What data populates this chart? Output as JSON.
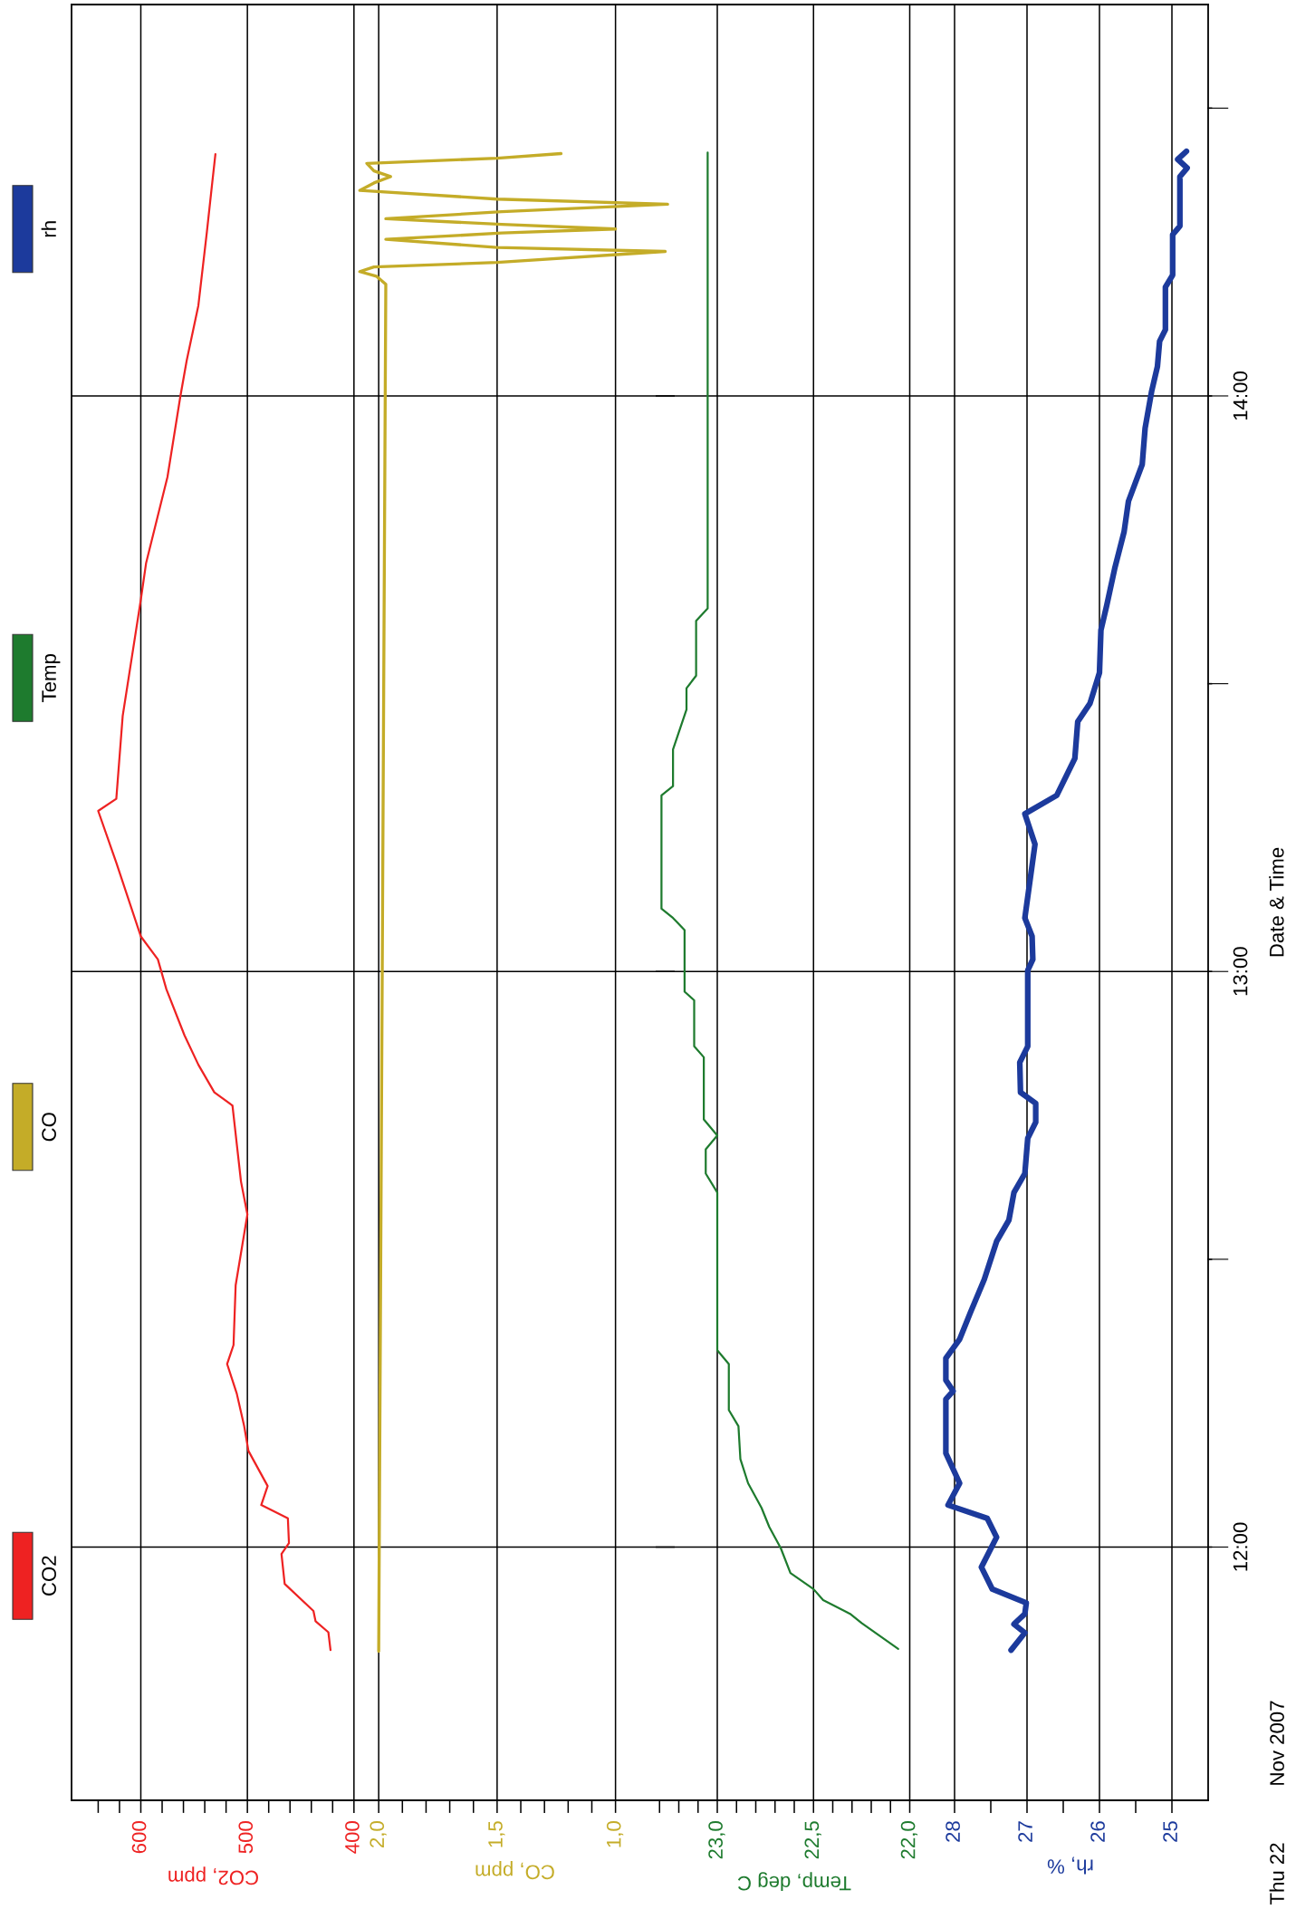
{
  "chart_data": [
    {
      "type": "line",
      "orientation": "horizontal",
      "xlabel": "CO2, ppm",
      "xlim": [
        665,
        399
      ],
      "xticks": [
        {
          "value": 640,
          "label": null
        },
        {
          "value": 620,
          "label": null
        },
        600,
        {
          "value": 580,
          "label": null
        },
        {
          "value": 560,
          "label": null
        },
        {
          "value": 540,
          "label": null
        },
        {
          "value": 520,
          "label": null
        },
        500,
        {
          "value": 480,
          "label": null
        },
        {
          "value": 460,
          "label": null
        },
        {
          "value": 440,
          "label": null
        },
        {
          "value": 420,
          "label": null
        },
        400
      ],
      "ylim": [
        11.56,
        14.68
      ],
      "yticks": [
        12,
        13,
        14
      ],
      "tick_labels": "x",
      "grid": true,
      "legend": "left",
      "x": [
        11.821,
        11.852,
        11.871,
        11.889,
        11.936,
        11.988,
        12.007,
        12.05,
        12.073,
        12.106,
        12.167,
        12.21,
        12.267,
        12.318,
        12.351,
        12.455,
        12.578,
        12.635,
        12.767,
        12.79,
        12.838,
        12.889,
        12.969,
        13.021,
        13.061,
        13.189,
        13.279,
        13.3,
        13.444,
        13.646,
        13.71,
        13.859,
        13.998,
        14.061,
        14.157,
        14.285,
        14.37,
        14.42
      ],
      "series": [
        {
          "name": "CO2",
          "color": "#ee2222",
          "values": [
            422,
            424,
            436,
            438,
            465,
            468,
            461,
            462,
            487,
            481,
            499,
            503,
            510,
            519,
            513,
            511,
            500,
            506,
            514,
            531,
            546,
            559,
            576,
            584,
            600,
            623,
            640,
            623,
            617,
            600,
            595,
            575,
            563,
            557,
            546,
            538,
            533,
            530
          ]
        }
      ]
    },
    {
      "type": "line",
      "orientation": "horizontal",
      "xlabel": "CO, ppm",
      "xlim": [
        2.1,
        0.75
      ],
      "xticks": [
        {
          "value": 2.0,
          "label": "2,0"
        },
        {
          "value": 1.9,
          "label": null
        },
        {
          "value": 1.8,
          "label": null
        },
        {
          "value": 1.7,
          "label": null
        },
        {
          "value": 1.6,
          "label": null
        },
        {
          "value": 1.5,
          "label": "1,5"
        },
        {
          "value": 1.4,
          "label": null
        },
        {
          "value": 1.3,
          "label": null
        },
        {
          "value": 1.2,
          "label": null
        },
        {
          "value": 1.1,
          "label": null
        },
        {
          "value": 1.0,
          "label": "1,0"
        }
      ],
      "ylim": [
        11.56,
        14.68
      ],
      "yticks": [
        12,
        13,
        14
      ],
      "tick_labels": "x",
      "grid": true,
      "legend": "left",
      "x": [
        11.819,
        14.194,
        14.208,
        14.216,
        14.224,
        14.232,
        14.251,
        14.258,
        14.272,
        14.283,
        14.29,
        14.298,
        14.308,
        14.32,
        14.333,
        14.342,
        14.357,
        14.37,
        14.381,
        14.391,
        14.404,
        14.413,
        14.421
      ],
      "series": [
        {
          "name": "CO",
          "color": "#c4ac28",
          "values": [
            2.0,
            1.97,
            2.01,
            2.08,
            2.02,
            1.5,
            0.79,
            1.5,
            1.97,
            1.48,
            1.0,
            1.48,
            1.97,
            1.48,
            0.78,
            1.5,
            2.08,
            2.02,
            1.95,
            2.02,
            2.05,
            1.5,
            1.23
          ]
        }
      ]
    },
    {
      "type": "line",
      "orientation": "horizontal",
      "xlabel": "Temp, deg C",
      "xlim": [
        23.32,
        21.88
      ],
      "xticks": [
        {
          "value": 23.3,
          "label": null
        },
        {
          "value": 23.2,
          "label": null
        },
        {
          "value": 23.1,
          "label": null
        },
        {
          "value": 23.0,
          "label": "23,0"
        },
        {
          "value": 22.9,
          "label": null
        },
        {
          "value": 22.8,
          "label": null
        },
        {
          "value": 22.7,
          "label": null
        },
        {
          "value": 22.6,
          "label": null
        },
        {
          "value": 22.5,
          "label": "22,5"
        },
        {
          "value": 22.4,
          "label": null
        },
        {
          "value": 22.3,
          "label": null
        },
        {
          "value": 22.2,
          "label": null
        },
        {
          "value": 22.1,
          "label": null
        },
        {
          "value": 22.0,
          "label": "22,0"
        }
      ],
      "ylim": [
        11.56,
        14.68
      ],
      "yticks": [
        12,
        13,
        14
      ],
      "tick_labels": "x",
      "grid": true,
      "legend": "left",
      "x": [
        11.823,
        11.868,
        11.884,
        11.908,
        11.927,
        11.955,
        11.998,
        12.035,
        12.068,
        12.111,
        12.153,
        12.21,
        12.238,
        12.318,
        12.342,
        12.616,
        12.649,
        12.691,
        12.715,
        12.743,
        12.851,
        12.87,
        12.95,
        12.965,
        13.072,
        13.093,
        13.109,
        13.306,
        13.322,
        13.386,
        13.455,
        13.492,
        13.514,
        13.609,
        13.631,
        14.423
      ],
      "series": [
        {
          "name": "Temp",
          "color": "#1e7b2e",
          "values": [
            22.06,
            22.25,
            22.31,
            22.45,
            22.5,
            22.62,
            22.67,
            22.73,
            22.77,
            22.84,
            22.88,
            22.89,
            22.94,
            22.94,
            23.0,
            23.0,
            23.06,
            23.06,
            23.0,
            23.07,
            23.07,
            23.12,
            23.12,
            23.17,
            23.17,
            23.23,
            23.29,
            23.29,
            23.23,
            23.23,
            23.16,
            23.16,
            23.11,
            23.11,
            23.05,
            23.05
          ]
        }
      ]
    },
    {
      "type": "line",
      "orientation": "horizontal",
      "xlabel": "rh, %",
      "ylabel": "Date & Time",
      "xlim": [
        28.3,
        24.5
      ],
      "xticks": [
        28,
        {
          "value": 27.5,
          "label": null
        },
        27,
        {
          "value": 26.5,
          "label": null
        },
        26,
        {
          "value": 25.5,
          "label": null
        },
        25
      ],
      "ylim": [
        11.56,
        14.68
      ],
      "yticks": [
        {
          "value": 12,
          "label": "12:00"
        },
        {
          "value": 12.5,
          "label": null
        },
        {
          "value": 13,
          "label": "13:00"
        },
        {
          "value": 13.5,
          "label": null
        },
        {
          "value": 14,
          "label": "14:00"
        },
        {
          "value": 14.5,
          "label": null
        }
      ],
      "grid": true,
      "legend": "left",
      "annotations": [
        "Thu 22",
        "Nov 2007"
      ],
      "x": [
        11.821,
        11.851,
        11.866,
        11.884,
        11.903,
        11.927,
        11.965,
        12.017,
        12.05,
        12.073,
        12.111,
        12.163,
        12.257,
        12.271,
        12.29,
        12.328,
        12.361,
        12.408,
        12.465,
        12.531,
        12.568,
        12.616,
        12.649,
        12.71,
        12.738,
        12.771,
        12.79,
        12.842,
        12.87,
        13.002,
        13.021,
        13.061,
        13.093,
        13.221,
        13.274,
        13.306,
        13.37,
        13.434,
        13.466,
        13.519,
        13.593,
        13.636,
        13.7,
        13.764,
        13.817,
        13.881,
        13.944,
        14.008,
        14.051,
        14.095,
        14.115,
        14.189,
        14.21,
        14.28,
        14.295,
        14.381,
        14.396,
        14.411,
        14.425
      ],
      "series": [
        {
          "name": "rh",
          "color": "#1c3a9c",
          "values": [
            27.22,
            27.03,
            27.18,
            27.03,
            27.01,
            27.48,
            27.63,
            27.42,
            27.55,
            28.09,
            27.93,
            28.12,
            28.12,
            28.02,
            28.12,
            28.12,
            27.93,
            27.78,
            27.59,
            27.42,
            27.25,
            27.18,
            27.03,
            26.99,
            26.88,
            26.88,
            27.09,
            27.1,
            26.99,
            26.99,
            26.92,
            26.93,
            27.03,
            26.89,
            27.03,
            26.59,
            26.34,
            26.3,
            26.13,
            26.0,
            25.98,
            25.9,
            25.79,
            25.66,
            25.6,
            25.41,
            25.37,
            25.28,
            25.2,
            25.17,
            25.09,
            25.09,
            24.99,
            24.99,
            24.89,
            24.89,
            24.79,
            24.92,
            24.8
          ]
        }
      ]
    }
  ]
}
